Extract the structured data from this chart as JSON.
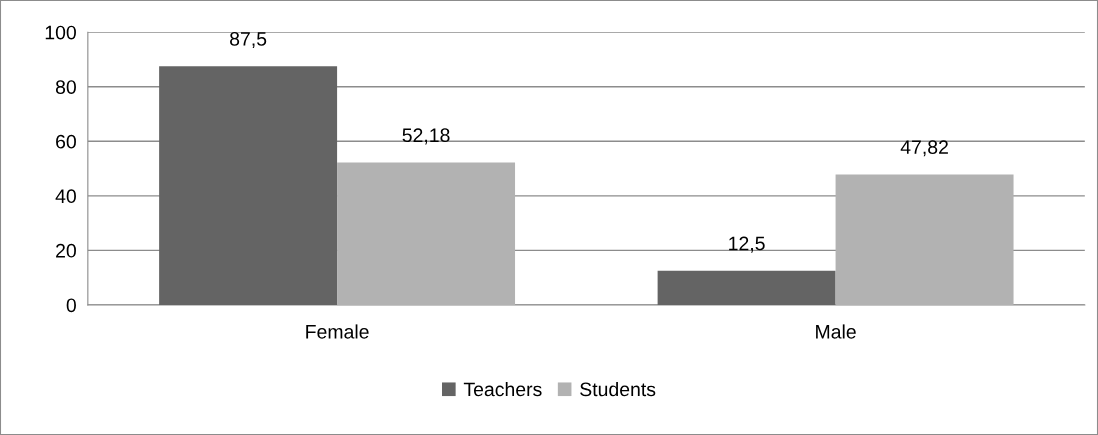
{
  "chart_data": {
    "type": "bar",
    "categories": [
      "Female",
      "Male"
    ],
    "series": [
      {
        "name": "Teachers",
        "color": "#646464",
        "values": [
          87.5,
          12.5
        ],
        "value_labels": [
          "87,5",
          "12,5"
        ]
      },
      {
        "name": "Students",
        "color": "#b2b2b2",
        "values": [
          52.18,
          47.82
        ],
        "value_labels": [
          "52,18",
          "47,82"
        ]
      }
    ],
    "ylim": [
      0,
      100
    ],
    "yticks": [
      0,
      20,
      40,
      60,
      80,
      100
    ],
    "grid": "y",
    "legend": "bottom"
  }
}
